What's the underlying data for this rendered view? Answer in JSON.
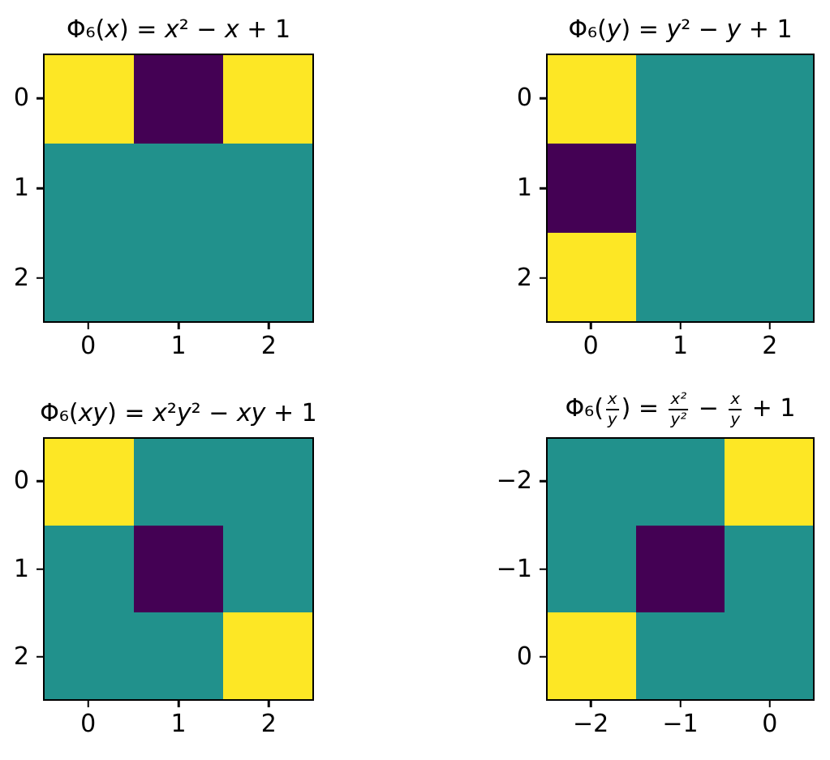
{
  "figure": {
    "background": "#ffffff",
    "palette": {
      "low": "#440154",
      "mid": "#21918c",
      "high": "#fde725"
    }
  },
  "subplots": [
    {
      "id": "phi6-of-x",
      "title_text": "Φ₆(x) = x² − x + 1",
      "title_math": [
        {
          "t": "Φ₆("
        },
        {
          "t": "x",
          "it": true
        },
        {
          "t": ") = "
        },
        {
          "t": "x",
          "it": true
        },
        {
          "t": "² − "
        },
        {
          "t": "x",
          "it": true
        },
        {
          "t": " + 1"
        }
      ],
      "x_ticks": [
        "0",
        "1",
        "2"
      ],
      "y_ticks": [
        "0",
        "1",
        "2"
      ],
      "cell_colors": [
        [
          "#fde725",
          "#440154",
          "#fde725"
        ],
        [
          "#21918c",
          "#21918c",
          "#21918c"
        ],
        [
          "#21918c",
          "#21918c",
          "#21918c"
        ]
      ]
    },
    {
      "id": "phi6-of-y",
      "title_text": "Φ₆(y) = y² − y + 1",
      "title_math": [
        {
          "t": "Φ₆("
        },
        {
          "t": "y",
          "it": true
        },
        {
          "t": ") = "
        },
        {
          "t": "y",
          "it": true
        },
        {
          "t": "² − "
        },
        {
          "t": "y",
          "it": true
        },
        {
          "t": " + 1"
        }
      ],
      "x_ticks": [
        "0",
        "1",
        "2"
      ],
      "y_ticks": [
        "0",
        "1",
        "2"
      ],
      "cell_colors": [
        [
          "#fde725",
          "#21918c",
          "#21918c"
        ],
        [
          "#440154",
          "#21918c",
          "#21918c"
        ],
        [
          "#fde725",
          "#21918c",
          "#21918c"
        ]
      ]
    },
    {
      "id": "phi6-of-xy",
      "title_text": "Φ₆(xy) = x²y² − xy + 1",
      "title_math": [
        {
          "t": "Φ₆("
        },
        {
          "t": "xy",
          "it": true
        },
        {
          "t": ") = "
        },
        {
          "t": "x",
          "it": true
        },
        {
          "t": "²"
        },
        {
          "t": "y",
          "it": true
        },
        {
          "t": "² − "
        },
        {
          "t": "xy",
          "it": true
        },
        {
          "t": " + 1"
        }
      ],
      "x_ticks": [
        "0",
        "1",
        "2"
      ],
      "y_ticks": [
        "0",
        "1",
        "2"
      ],
      "cell_colors": [
        [
          "#fde725",
          "#21918c",
          "#21918c"
        ],
        [
          "#21918c",
          "#440154",
          "#21918c"
        ],
        [
          "#21918c",
          "#21918c",
          "#fde725"
        ]
      ]
    },
    {
      "id": "phi6-of-x-over-y",
      "title_text": "Φ₆(x/y) = x²/y² − x/y + 1",
      "title_math": [
        {
          "t": "Φ₆("
        },
        {
          "frac": {
            "n": "x",
            "d": "y"
          }
        },
        {
          "t": ") = "
        },
        {
          "frac": {
            "n": "x²",
            "d": "y²"
          }
        },
        {
          "t": " − "
        },
        {
          "frac": {
            "n": "x",
            "d": "y"
          }
        },
        {
          "t": " + 1"
        }
      ],
      "x_ticks": [
        "−2",
        "−1",
        "0"
      ],
      "y_ticks": [
        "−2",
        "−1",
        "0"
      ],
      "cell_colors": [
        [
          "#21918c",
          "#21918c",
          "#fde725"
        ],
        [
          "#21918c",
          "#440154",
          "#21918c"
        ],
        [
          "#fde725",
          "#21918c",
          "#21918c"
        ]
      ]
    }
  ],
  "chart_data": [
    {
      "type": "heatmap",
      "title": "Φ₆(x) = x² − x + 1",
      "x": [
        0,
        1,
        2
      ],
      "y": [
        0,
        1,
        2
      ],
      "xlabel": "",
      "ylabel": "",
      "colormap": "viridis",
      "level_colors": {
        "0": "#440154",
        "1": "#21918c",
        "2": "#fde725"
      },
      "values": [
        [
          2,
          0,
          2
        ],
        [
          1,
          1,
          1
        ],
        [
          1,
          1,
          1
        ]
      ],
      "grid": false,
      "legend": "none",
      "value_encoding": "color level read from pixels: 0=dark purple (min), 1=teal (mid), 2=yellow (max); no colorbar shown"
    },
    {
      "type": "heatmap",
      "title": "Φ₆(y) = y² − y + 1",
      "x": [
        0,
        1,
        2
      ],
      "y": [
        0,
        1,
        2
      ],
      "xlabel": "",
      "ylabel": "",
      "colormap": "viridis",
      "level_colors": {
        "0": "#440154",
        "1": "#21918c",
        "2": "#fde725"
      },
      "values": [
        [
          2,
          1,
          1
        ],
        [
          0,
          1,
          1
        ],
        [
          2,
          1,
          1
        ]
      ],
      "grid": false,
      "legend": "none",
      "value_encoding": "color level read from pixels: 0=dark purple (min), 1=teal (mid), 2=yellow (max); no colorbar shown"
    },
    {
      "type": "heatmap",
      "title": "Φ₆(xy) = x²y² − xy + 1",
      "x": [
        0,
        1,
        2
      ],
      "y": [
        0,
        1,
        2
      ],
      "xlabel": "",
      "ylabel": "",
      "colormap": "viridis",
      "level_colors": {
        "0": "#440154",
        "1": "#21918c",
        "2": "#fde725"
      },
      "values": [
        [
          2,
          1,
          1
        ],
        [
          1,
          0,
          1
        ],
        [
          1,
          1,
          2
        ]
      ],
      "grid": false,
      "legend": "none",
      "value_encoding": "color level read from pixels: 0=dark purple (min), 1=teal (mid), 2=yellow (max); no colorbar shown"
    },
    {
      "type": "heatmap",
      "title": "Φ₆(x/y) = x²/y² − x/y + 1",
      "x": [
        -2,
        -1,
        0
      ],
      "y": [
        -2,
        -1,
        0
      ],
      "xlabel": "",
      "ylabel": "",
      "colormap": "viridis",
      "level_colors": {
        "0": "#440154",
        "1": "#21918c",
        "2": "#fde725"
      },
      "values": [
        [
          1,
          1,
          2
        ],
        [
          1,
          0,
          1
        ],
        [
          2,
          1,
          1
        ]
      ],
      "grid": false,
      "legend": "none",
      "value_encoding": "color level read from pixels: 0=dark purple (min), 1=teal (mid), 2=yellow (max); no colorbar shown"
    }
  ]
}
